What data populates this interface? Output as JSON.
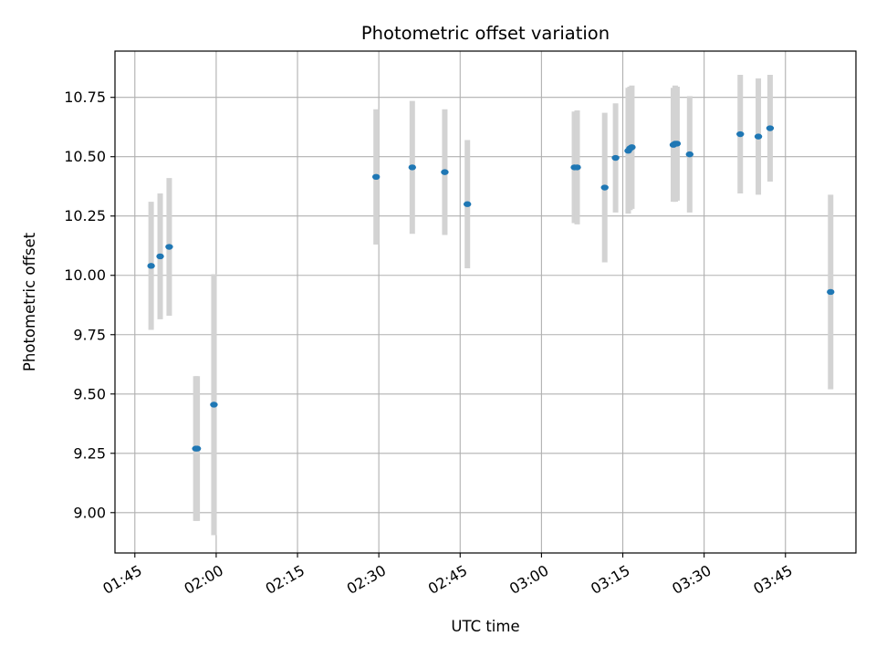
{
  "chart_data": {
    "type": "scatter",
    "title": "Photometric offset variation",
    "xlabel": "UTC time",
    "ylabel": "Photometric offset",
    "x_tick_labels": [
      "01:45",
      "02:00",
      "02:15",
      "02:30",
      "02:45",
      "03:00",
      "03:15",
      "03:30",
      "03:45"
    ],
    "y_tick_labels": [
      "9.00",
      "9.25",
      "9.50",
      "9.75",
      "10.00",
      "10.25",
      "10.50",
      "10.75"
    ],
    "grid": true,
    "colors": {
      "point": "#1f77b4",
      "errorbar": "#d3d3d3",
      "grid": "#b0b0b0"
    },
    "x_range": [
      "01:41:20",
      "03:58:00"
    ],
    "ylim": [
      8.83,
      10.945
    ],
    "points": [
      {
        "x": "01:48:00",
        "y": 10.04,
        "err": 0.27
      },
      {
        "x": "01:49:40",
        "y": 10.08,
        "err": 0.265
      },
      {
        "x": "01:51:20",
        "y": 10.12,
        "err": 0.29
      },
      {
        "x": "01:56:15",
        "y": 9.27,
        "err": 0.305
      },
      {
        "x": "01:56:30",
        "y": 9.27,
        "err": 0.305
      },
      {
        "x": "01:59:35",
        "y": 9.455,
        "err": 0.55
      },
      {
        "x": "02:29:30",
        "y": 10.415,
        "err": 0.285
      },
      {
        "x": "02:36:10",
        "y": 10.455,
        "err": 0.28
      },
      {
        "x": "02:42:10",
        "y": 10.435,
        "err": 0.265
      },
      {
        "x": "02:46:20",
        "y": 10.3,
        "err": 0.27
      },
      {
        "x": "03:06:05",
        "y": 10.455,
        "err": 0.235
      },
      {
        "x": "03:06:35",
        "y": 10.455,
        "err": 0.24
      },
      {
        "x": "03:11:40",
        "y": 10.37,
        "err": 0.315
      },
      {
        "x": "03:13:40",
        "y": 10.495,
        "err": 0.23
      },
      {
        "x": "03:16:00",
        "y": 10.525,
        "err": 0.265
      },
      {
        "x": "03:16:20",
        "y": 10.535,
        "err": 0.26
      },
      {
        "x": "03:16:40",
        "y": 10.54,
        "err": 0.26
      },
      {
        "x": "03:24:20",
        "y": 10.55,
        "err": 0.24
      },
      {
        "x": "03:24:40",
        "y": 10.555,
        "err": 0.245
      },
      {
        "x": "03:25:00",
        "y": 10.555,
        "err": 0.24
      },
      {
        "x": "03:27:20",
        "y": 10.51,
        "err": 0.245
      },
      {
        "x": "03:36:40",
        "y": 10.595,
        "err": 0.25
      },
      {
        "x": "03:40:00",
        "y": 10.585,
        "err": 0.245
      },
      {
        "x": "03:42:10",
        "y": 10.62,
        "err": 0.225
      },
      {
        "x": "03:53:20",
        "y": 9.93,
        "err": 0.41
      }
    ]
  }
}
